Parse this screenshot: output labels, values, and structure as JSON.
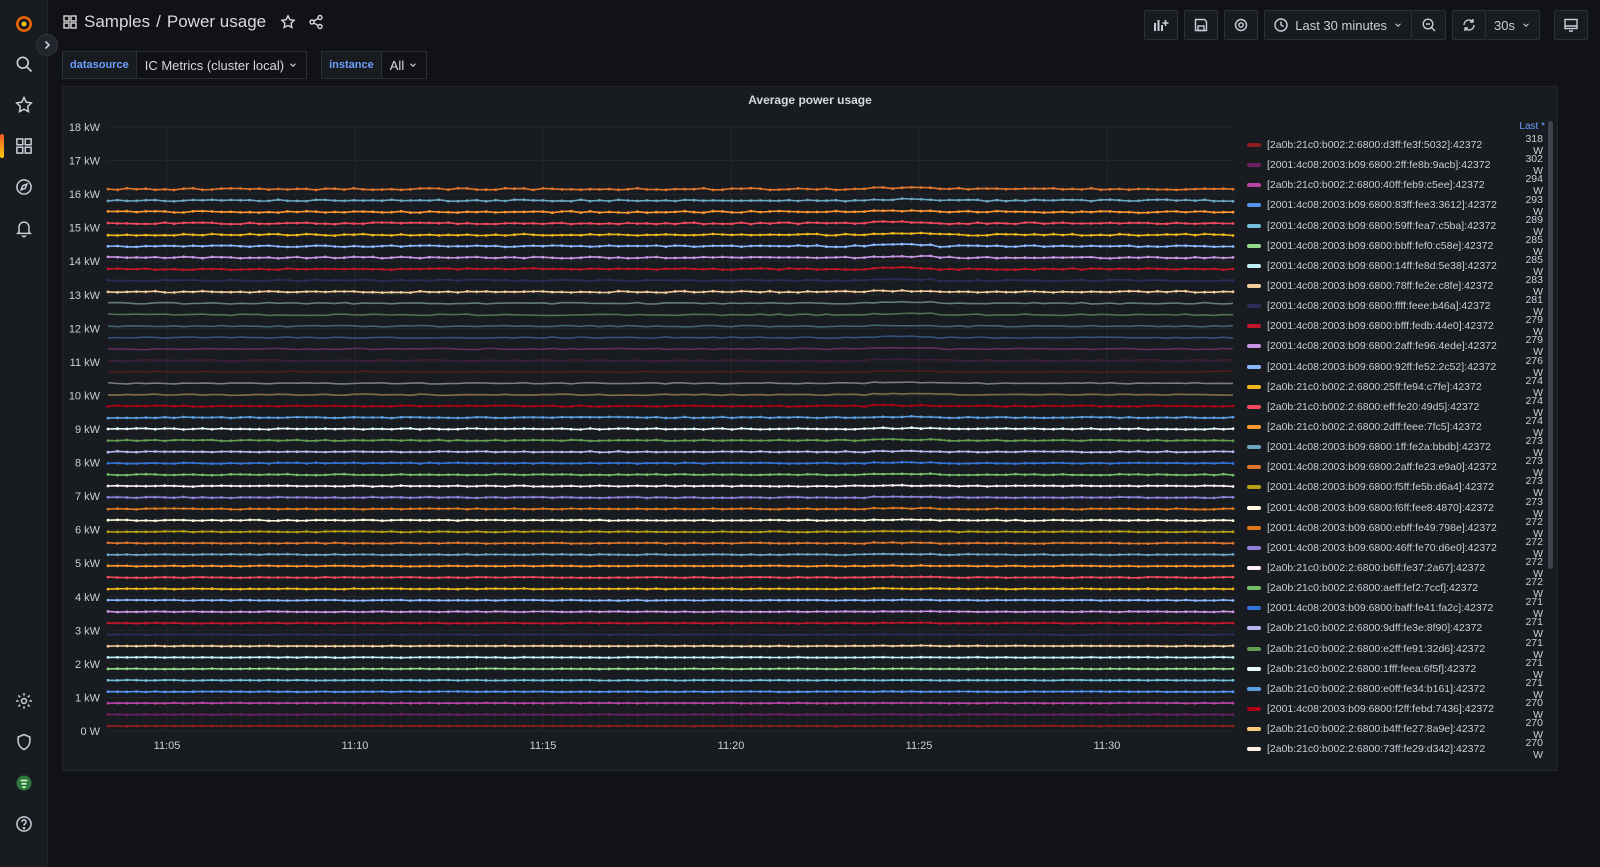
{
  "breadcrumb": {
    "folder": "Samples",
    "separator": "/",
    "title": "Power usage"
  },
  "toolbar": {
    "time_range": "Last 30 minutes",
    "refresh_interval": "30s"
  },
  "variables": [
    {
      "label": "datasource",
      "value": "IC Metrics (cluster local)"
    },
    {
      "label": "instance",
      "value": "All"
    }
  ],
  "panel": {
    "title": "Average power usage",
    "legend_header": "Last *"
  },
  "chart_data": {
    "type": "line",
    "title": "Average power usage",
    "y_ticks": [
      "0 W",
      "1 kW",
      "2 kW",
      "3 kW",
      "4 kW",
      "5 kW",
      "6 kW",
      "7 kW",
      "8 kW",
      "9 kW",
      "10 kW",
      "11 kW",
      "12 kW",
      "13 kW",
      "14 kW",
      "15 kW",
      "16 kW",
      "17 kW",
      "18 kW"
    ],
    "ylim": [
      0,
      18000
    ],
    "x_ticks": [
      "11:05",
      "11:10",
      "11:15",
      "11:20",
      "11:25",
      "11:30"
    ],
    "stacked": true,
    "series": [
      {
        "name": "[2a0b:21c0:b002:2:6800:d3ff:fe3f:5032]:42372",
        "last": "318 W",
        "color": "#8f1d1d"
      },
      {
        "name": "[2001:4c08:2003:b09:6800:2ff:fe8b:9acb]:42372",
        "last": "302 W",
        "color": "#6d1f62"
      },
      {
        "name": "[2a0b:21c0:b002:2:6800:40ff:feb9:c5ee]:42372",
        "last": "294 W",
        "color": "#b845a6"
      },
      {
        "name": "[2001:4c08:2003:b09:6800:83ff:fee3:3612]:42372",
        "last": "293 W",
        "color": "#5794f2"
      },
      {
        "name": "[2001:4c08:2003:b09:6800:59ff:fea7:c5ba]:42372",
        "last": "289 W",
        "color": "#73bfd9"
      },
      {
        "name": "[2001:4c08:2003:b09:6800:bbff:fef0:c58e]:42372",
        "last": "285 W",
        "color": "#96d98d"
      },
      {
        "name": "[2001:4c08:2003:b09:6800:14ff:fe8d:5e38]:42372",
        "last": "285 W",
        "color": "#c0f0f8"
      },
      {
        "name": "[2001:4c08:2003:b09:6800:78ff:fe2e:c8fe]:42372",
        "last": "283 W",
        "color": "#f2cc9a"
      },
      {
        "name": "[2001:4c08:2003:b09:6800:ffff:feee:b46a]:42372",
        "last": "281 W",
        "color": "#2f2b5c"
      },
      {
        "name": "[2001:4c08:2003:b09:6800:bfff:fedb:44e0]:42372",
        "last": "279 W",
        "color": "#c4162a"
      },
      {
        "name": "[2001:4c08:2003:b09:6800:2aff:fe96:4ede]:42372",
        "last": "279 W",
        "color": "#ca95e5"
      },
      {
        "name": "[2001:4c08:2003:b09:6800:92ff:fe52:2c52]:42372",
        "last": "276 W",
        "color": "#8ab8ff"
      },
      {
        "name": "[2a0b:21c0:b002:2:6800:25ff:fe94:c7fe]:42372",
        "last": "274 W",
        "color": "#f2b81b"
      },
      {
        "name": "[2a0b:21c0:b002:2:6800:eff:fe20:49d5]:42372",
        "last": "274 W",
        "color": "#f2495c"
      },
      {
        "name": "[2a0b:21c0:b002:2:6800:2dff:feee:7fc5]:42372",
        "last": "274 W",
        "color": "#ff9830"
      },
      {
        "name": "[2001:4c08:2003:b09:6800:1ff:fe2a:bbdb]:42372",
        "last": "273 W",
        "color": "#6ca6c4"
      },
      {
        "name": "[2001:4c08:2003:b09:6800:2aff:fe23:e9a0]:42372",
        "last": "273 W",
        "color": "#e0752d"
      },
      {
        "name": "[2001:4c08:2003:b09:6800:f5ff:fe5b:d6a4]:42372",
        "last": "273 W",
        "color": "#b8a014"
      },
      {
        "name": "[2001:4c08:2003:b09:6800:f6ff:fee8:4870]:42372",
        "last": "273 W",
        "color": "#fffadf"
      },
      {
        "name": "[2001:4c08:2003:b09:6800:ebff:fe49:798e]:42372",
        "last": "272 W",
        "color": "#e07a1f"
      },
      {
        "name": "[2001:4c08:2003:b09:6800:46ff:fe70:d6e0]:42372",
        "last": "272 W",
        "color": "#8f7fd9"
      },
      {
        "name": "[2a0b:21c0:b002:2:6800:b6ff:fe37:2a67]:42372",
        "last": "272 W",
        "color": "#fdeff8"
      },
      {
        "name": "[2a0b:21c0:b002:2:6800:aeff:fef2:7ccf]:42372",
        "last": "272 W",
        "color": "#73bf69"
      },
      {
        "name": "[2001:4c08:2003:b09:6800:baff:fe41:fa2c]:42372",
        "last": "271 W",
        "color": "#3274d9"
      },
      {
        "name": "[2a0b:21c0:b002:2:6800:9dff:fe3e:8f90]:42372",
        "last": "271 W",
        "color": "#b7b7ef"
      },
      {
        "name": "[2a0b:21c0:b002:2:6800:e2ff:fe91:32d6]:42372",
        "last": "271 W",
        "color": "#629e51"
      },
      {
        "name": "[2a0b:21c0:b002:2:6800:1fff:feea:6f5f]:42372",
        "last": "271 W",
        "color": "#e8fdfb"
      },
      {
        "name": "[2a0b:21c0:b002:2:6800:e0ff:fe34:b161]:42372",
        "last": "271 W",
        "color": "#5aa0e0"
      },
      {
        "name": "[2001:4c08:2003:b09:6800:f2ff:febd:7436]:42372",
        "last": "270 W",
        "color": "#ad0317"
      },
      {
        "name": "[2a0b:21c0:b002:2:6800:b4ff:fe27:8a9e]:42372",
        "last": "270 W",
        "color": "#ffcb7d"
      },
      {
        "name": "[2a0b:21c0:b002:2:6800:73ff:fe29:d342]:42372",
        "last": "270 W",
        "color": "#fff0e8"
      }
    ]
  }
}
